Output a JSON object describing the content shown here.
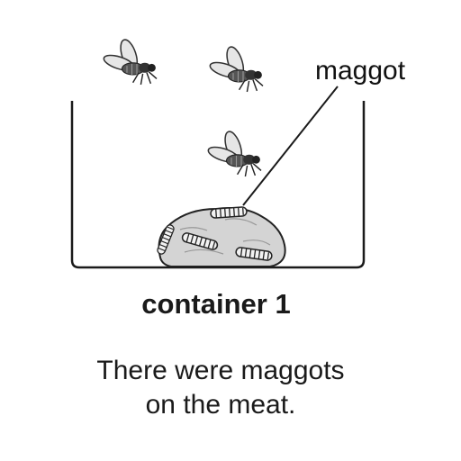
{
  "diagram": {
    "label_maggot": "maggot",
    "title": "container 1",
    "caption_line1": "There were maggots",
    "caption_line2": "on the meat."
  },
  "colors": {
    "ink": "#1a1a1a",
    "meat_fill": "#d4d4d4",
    "wing_fill": "#e6e6e6"
  },
  "icons": [
    "fly-icon",
    "maggot-icon",
    "meat-icon",
    "container-outline"
  ]
}
